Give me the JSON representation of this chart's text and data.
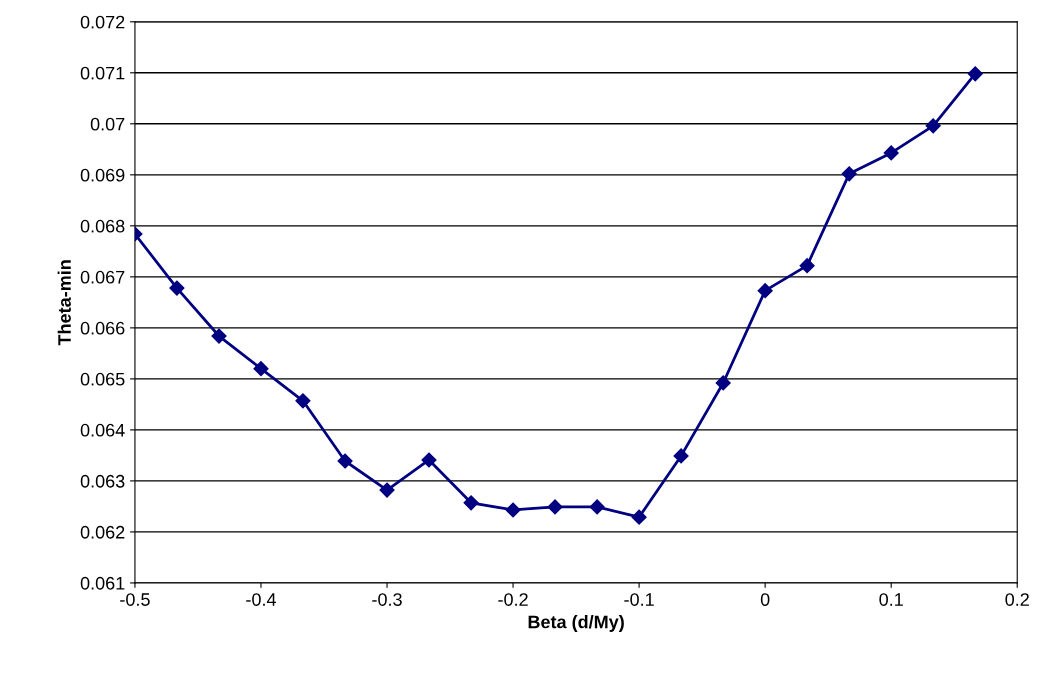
{
  "chart_data": {
    "type": "line",
    "xlabel": "Beta (d/My)",
    "ylabel": "Theta-min",
    "x": [
      -0.5,
      -0.4667,
      -0.4333,
      -0.4,
      -0.3667,
      -0.3333,
      -0.3,
      -0.2667,
      -0.2333,
      -0.2,
      -0.1667,
      -0.1333,
      -0.1,
      -0.0667,
      -0.0333,
      0,
      0.0333,
      0.0667,
      0.1,
      0.1333,
      0.1667
    ],
    "series": [
      {
        "color": "#000080",
        "values": [
          0.06784,
          0.06678,
          0.06584,
          0.0652,
          0.06457,
          0.06339,
          0.06282,
          0.06341,
          0.06257,
          0.06243,
          0.06249,
          0.06249,
          0.06229,
          0.06349,
          0.06492,
          0.06673,
          0.06722,
          0.06902,
          0.06943,
          0.06996,
          0.07098
        ]
      }
    ],
    "xlim": [
      -0.5,
      0.2
    ],
    "xticks": [
      -0.5,
      -0.4,
      -0.3,
      -0.2,
      -0.1,
      0,
      0.1,
      0.2
    ],
    "ylim": [
      0.061,
      0.072
    ],
    "yticks": [
      0.061,
      0.062,
      0.063,
      0.064,
      0.065,
      0.066,
      0.067,
      0.068,
      0.069,
      0.07,
      0.071,
      0.072
    ],
    "grid": "y",
    "marker": "diamond",
    "line_style": "solid"
  }
}
